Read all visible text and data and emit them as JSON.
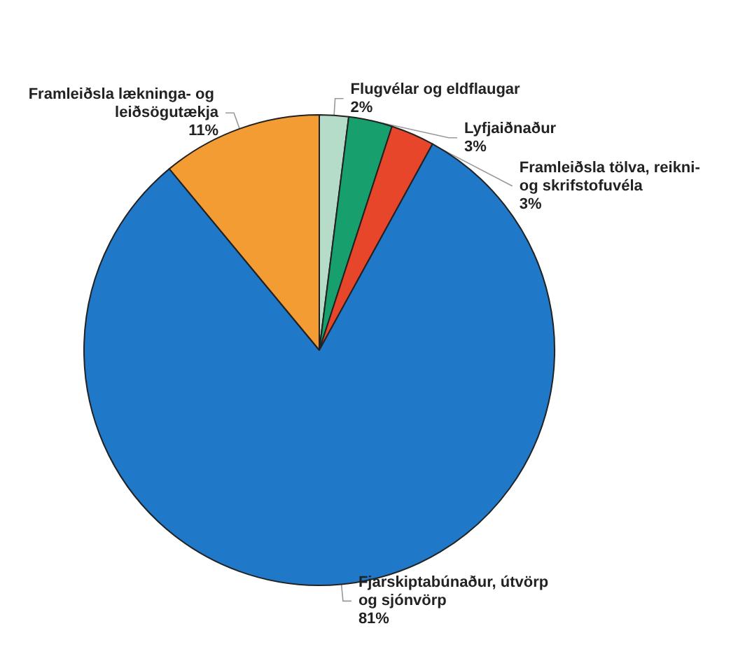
{
  "chart_data": {
    "type": "pie",
    "categories": [
      "Flugvélar og eldflaugar",
      "Lyfjaiðnaður",
      "Framleiðsla tölva, reikni- og skrifstofuvéla",
      "Fjarskiptabúnaður, útvörp og sjónvörp",
      "Framleiðsla lækninga- og leiðsögutækja"
    ],
    "values": [
      2,
      3,
      3,
      81,
      11
    ],
    "value_labels": [
      "2%",
      "3%",
      "3%",
      "81%",
      "11%"
    ],
    "colors": [
      "#b5dcc8",
      "#17a06e",
      "#e8462a",
      "#1f78c8",
      "#f39c33"
    ],
    "legend": false
  }
}
